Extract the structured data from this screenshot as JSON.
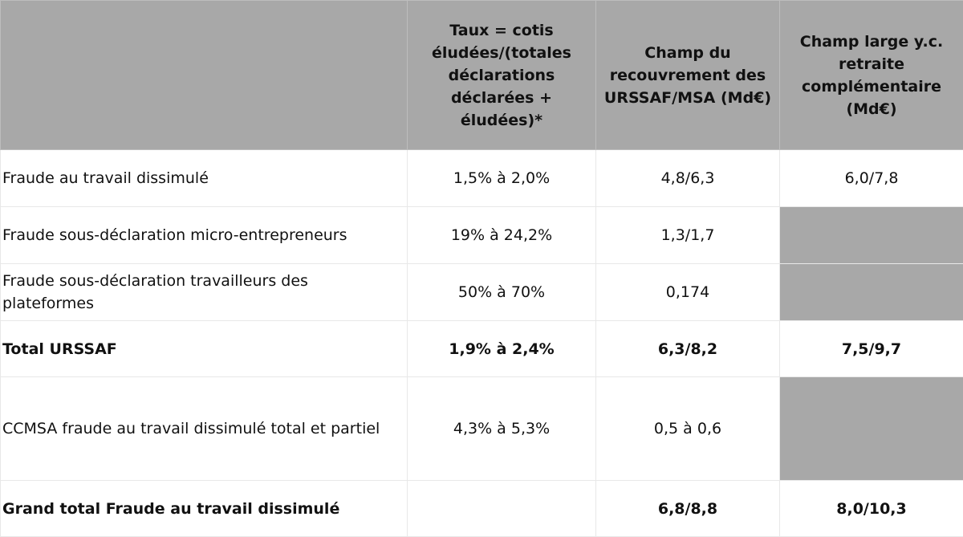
{
  "header": {
    "col1": "",
    "col2": "Taux = cotis éludées/(totales déclarations déclarées + éludées)*",
    "col3": "Champ du recouvrement des URSSAF/MSA (Md€)",
    "col4": "Champ large y.c. retraite complémentaire (Md€)"
  },
  "rows": [
    {
      "label": "Fraude au travail dissimulé",
      "taux": "1,5% à 2,0%",
      "champ": "4,8/6,3",
      "large": "6,0/7,8"
    },
    {
      "label": "Fraude sous-déclaration micro-entrepreneurs",
      "taux": "19% à 24,2%",
      "champ": "1,3/1,7",
      "large": ""
    },
    {
      "label": "Fraude sous-déclaration travailleurs des plateformes",
      "taux": "50% à 70%",
      "champ": "0,174",
      "large": ""
    },
    {
      "label": "Total URSSAF",
      "taux": "1,9% à 2,4%",
      "champ": "6,3/8,2",
      "large": "7,5/9,7"
    },
    {
      "label": "CCMSA fraude au travail dissimulé total et partiel",
      "taux": "4,3% à 5,3%",
      "champ": "0,5 à 0,6",
      "large": ""
    },
    {
      "label": "Grand total Fraude au travail dissimulé",
      "taux": "",
      "champ": "6,8/8,8",
      "large": "8,0/10,3"
    }
  ],
  "colors": {
    "header_bg": "#a8a8a8",
    "empty_cell_bg": "#a8a8a8"
  }
}
